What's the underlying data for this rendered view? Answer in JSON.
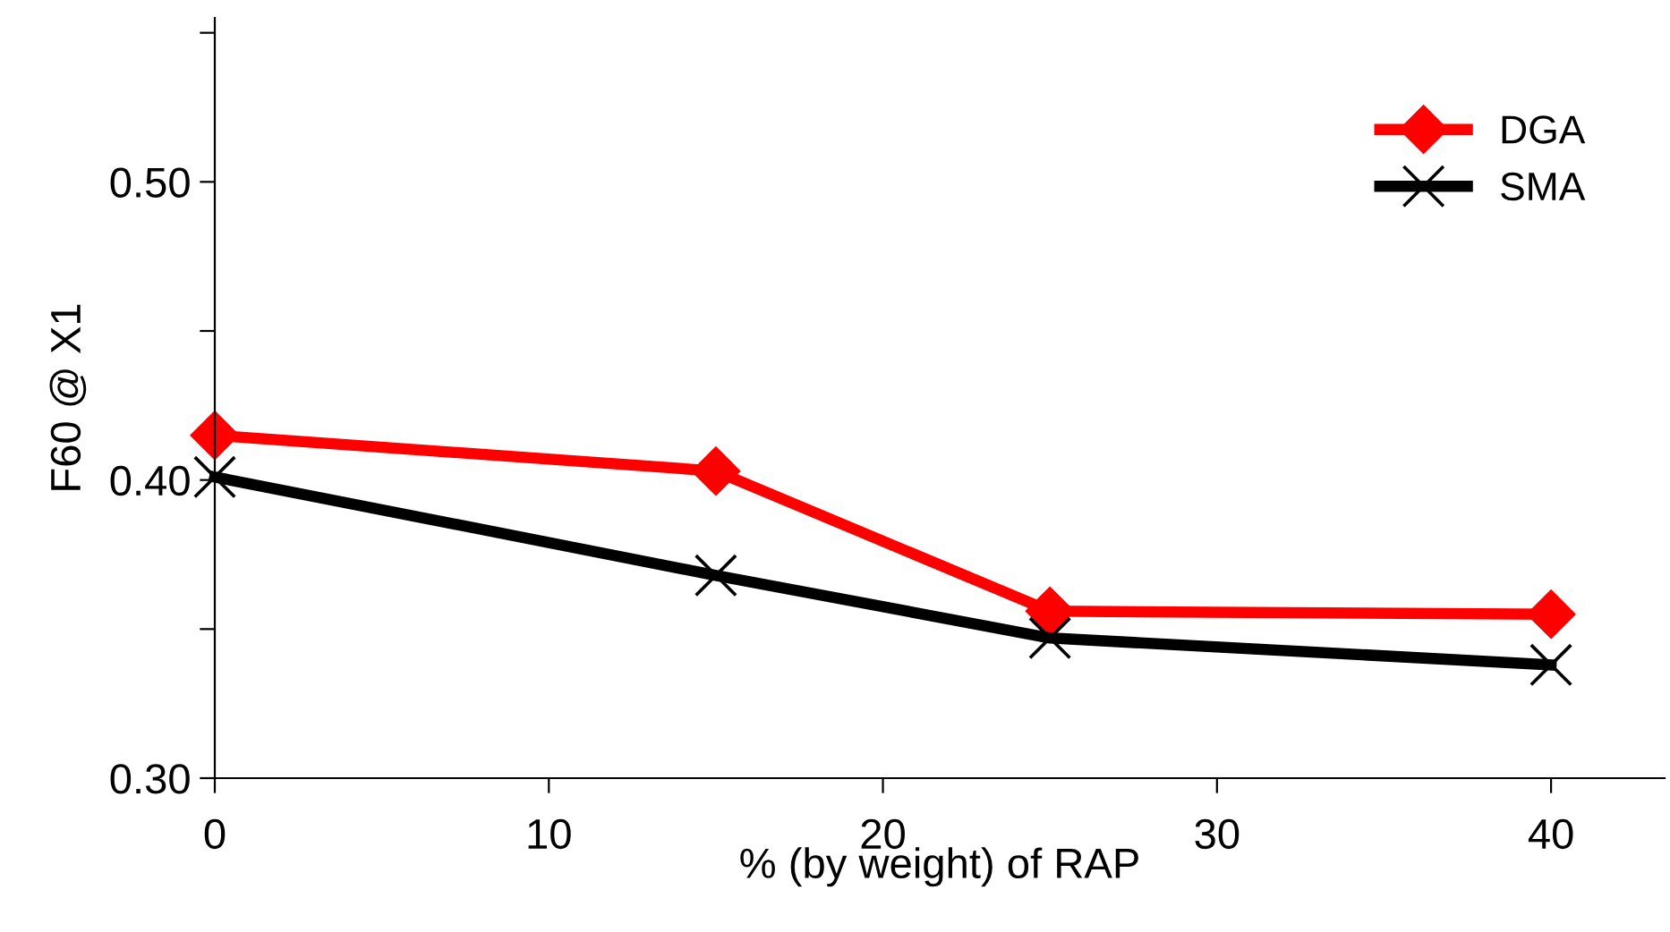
{
  "chart_data": {
    "type": "line",
    "xlabel": "% (by weight) of RAP",
    "ylabel": "F60 @ X1",
    "x": [
      0,
      15,
      25,
      40
    ],
    "series": [
      {
        "name": "DGA",
        "color": "#ff0000",
        "marker": "diamond",
        "values": [
          0.415,
          0.403,
          0.356,
          0.355
        ]
      },
      {
        "name": "SMA",
        "color": "#000000",
        "marker": "cross",
        "values": [
          0.401,
          0.368,
          0.347,
          0.338
        ]
      }
    ],
    "xlim": [
      0,
      43.4
    ],
    "xticks": [
      0,
      10,
      20,
      30,
      40
    ],
    "ylim": [
      0.3,
      0.555
    ],
    "yticks": [
      {
        "value": 0.3,
        "label": "0.30"
      },
      {
        "value": 0.35,
        "label": null
      },
      {
        "value": 0.4,
        "label": "0.40"
      },
      {
        "value": 0.45,
        "label": null
      },
      {
        "value": 0.5,
        "label": "0.50"
      },
      {
        "value": 0.55,
        "label": null
      }
    ],
    "grid": false,
    "legend": "top right",
    "line_style": "solid"
  }
}
